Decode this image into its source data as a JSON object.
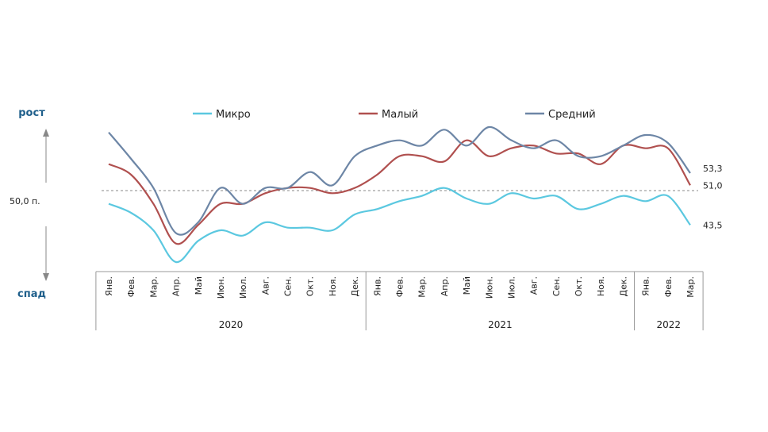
{
  "chart_data": {
    "type": "line",
    "title": "",
    "xlabel": "",
    "ylabel": "",
    "y_top_label": "рост",
    "y_bottom_label": "спад",
    "reference_line": {
      "value": 50.0,
      "label": "50,0 п."
    },
    "categories": [
      "Янв.",
      "Фев.",
      "Мар.",
      "Апр.",
      "Май",
      "Июн.",
      "Июл.",
      "Авг.",
      "Сен.",
      "Окт.",
      "Ноя.",
      "Дек.",
      "Янв.",
      "Фев.",
      "Мар.",
      "Апр.",
      "Май",
      "Июн.",
      "Июл.",
      "Авг.",
      "Сен.",
      "Окт.",
      "Ноя.",
      "Дек.",
      "Янв.",
      "Фев.",
      "Мар."
    ],
    "years": [
      {
        "label": "2020",
        "start": 0,
        "end": 11
      },
      {
        "label": "2021",
        "start": 12,
        "end": 23
      },
      {
        "label": "2022",
        "start": 24,
        "end": 26
      }
    ],
    "ylim": [
      35,
      62
    ],
    "grid": false,
    "legend_position": "top",
    "series": [
      {
        "name": "Микро",
        "color": "#5bc8e0",
        "values": [
          47.5,
          45.8,
          42.5,
          36.5,
          40.5,
          42.5,
          41.5,
          44.0,
          43.0,
          43.0,
          42.5,
          45.5,
          46.5,
          48.0,
          49.0,
          50.5,
          48.5,
          47.5,
          49.5,
          48.5,
          49.0,
          46.5,
          47.5,
          49.0,
          48.0,
          49.0,
          43.5
        ]
      },
      {
        "name": "Малый",
        "color": "#b0504f",
        "values": [
          55.0,
          53.0,
          47.5,
          40.0,
          43.5,
          47.5,
          47.5,
          49.5,
          50.5,
          50.5,
          49.5,
          50.5,
          53.0,
          56.5,
          56.5,
          55.5,
          59.5,
          56.5,
          58.0,
          58.5,
          57.0,
          57.0,
          55.0,
          58.5,
          58.0,
          58.0,
          51.0
        ]
      },
      {
        "name": "Средний",
        "color": "#6d86a6",
        "values": [
          61.0,
          56.0,
          50.5,
          42.0,
          44.0,
          50.5,
          47.5,
          50.5,
          50.5,
          53.5,
          51.0,
          56.5,
          58.5,
          59.5,
          58.5,
          61.5,
          58.5,
          62.0,
          59.5,
          58.0,
          59.5,
          56.5,
          56.5,
          58.5,
          60.5,
          59.0,
          53.3
        ]
      }
    ],
    "end_labels": [
      "43,5",
      "51,0",
      "53,3"
    ]
  }
}
